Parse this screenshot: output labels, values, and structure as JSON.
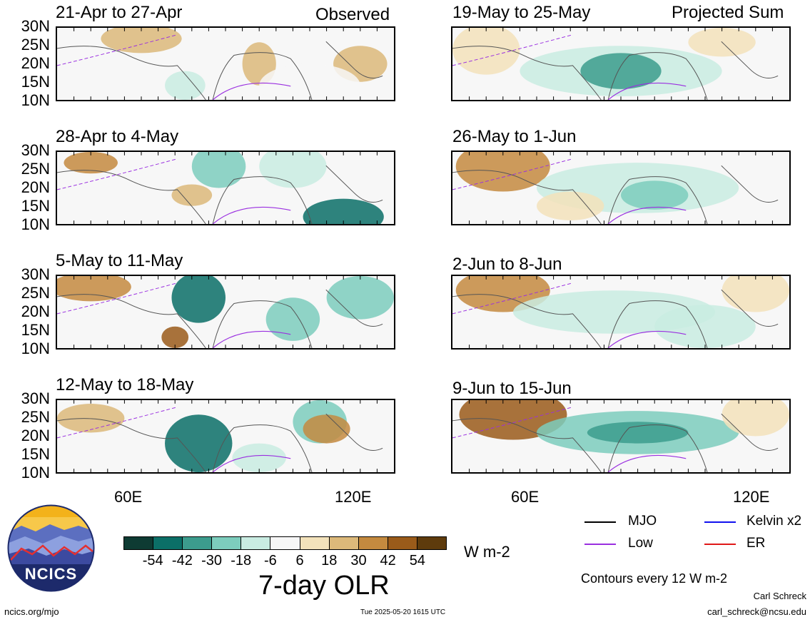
{
  "observed_label": "Observed",
  "projected_label": "Projected Sum",
  "panels": [
    {
      "title": "21-Apr to 27-Apr",
      "col": 0,
      "row": 0
    },
    {
      "title": "28-Apr to 4-May",
      "col": 0,
      "row": 1
    },
    {
      "title": "5-May to 11-May",
      "col": 0,
      "row": 2
    },
    {
      "title": "12-May to 18-May",
      "col": 0,
      "row": 3
    },
    {
      "title": "19-May to 25-May",
      "col": 1,
      "row": 0
    },
    {
      "title": "26-May to 1-Jun",
      "col": 1,
      "row": 1
    },
    {
      "title": "2-Jun to 8-Jun",
      "col": 1,
      "row": 2
    },
    {
      "title": "9-Jun to 15-Jun",
      "col": 1,
      "row": 3
    }
  ],
  "lat_labels": [
    "30N",
    "25N",
    "20N",
    "15N",
    "10N"
  ],
  "lon_labels": [
    "60E",
    "120E"
  ],
  "colorbar": {
    "colors": [
      "#0e3b33",
      "#0b6f67",
      "#3c9c8d",
      "#7dcdbd",
      "#c9ece2",
      "#f7f7f7",
      "#f3e2bb",
      "#dcb97a",
      "#c48a3f",
      "#9a5b1a",
      "#5e3b0c"
    ],
    "ticks": [
      "-54",
      "-42",
      "-30",
      "-18",
      "-6",
      "6",
      "18",
      "30",
      "42",
      "54"
    ],
    "units": "W m-2",
    "title": "7-day OLR"
  },
  "legend": {
    "mjo": {
      "label": "MJO",
      "color": "#000000"
    },
    "kelvin": {
      "label": "Kelvin x2",
      "color": "#1010ee"
    },
    "low": {
      "label": "Low",
      "color": "#9a2fe0"
    },
    "er": {
      "label": "ER",
      "color": "#e01818"
    },
    "contours_note": "Contours every 12 W m-2"
  },
  "logo_text": "NCICS",
  "footer": {
    "site": "ncics.org/mjo",
    "timestamp": "Tue 2025-05-20 1615 UTC",
    "author": "Carl Schreck",
    "email": "carl_schreck@ncsu.edu"
  }
}
